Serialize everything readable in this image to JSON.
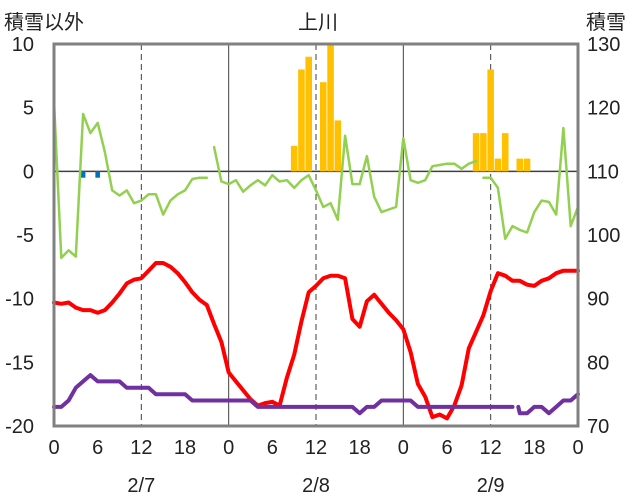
{
  "chart_data": {
    "type": "bar+line",
    "title": "上川",
    "ylabel_left": "積雪以外",
    "ylabel_right": "積雪",
    "ylim_left": [
      -20,
      10
    ],
    "ylim_right": [
      70,
      130
    ],
    "y_ticks_left": [
      "10",
      "5",
      "0",
      "-5",
      "-10",
      "-15",
      "-20"
    ],
    "y_ticks_right": [
      "130",
      "120",
      "110",
      "100",
      "90",
      "80",
      "70"
    ],
    "x_range_hours": [
      0,
      72
    ],
    "x_ticks": [
      "0",
      "6",
      "12",
      "18",
      "0",
      "6",
      "12",
      "18",
      "0",
      "6",
      "12",
      "18",
      "0"
    ],
    "date_labels": [
      "2/7",
      "2/8",
      "2/9"
    ],
    "colors": {
      "snowfall": "#FFC000",
      "precipitation": "#0070C0",
      "wind": "#92D050",
      "temperature": "#FF0000",
      "snow_depth": "#7030A0",
      "axis": "#808080",
      "zero_line": "#404040",
      "grid": "#404040"
    },
    "series": [
      {
        "key": "snowfall",
        "type": "bar",
        "axis": "left",
        "x": [
          33,
          34,
          35,
          37,
          38,
          39,
          58,
          59,
          60,
          61,
          62,
          64,
          65
        ],
        "values": [
          2,
          8,
          9,
          7,
          10,
          4,
          3,
          3,
          8,
          1,
          3,
          1,
          1
        ]
      },
      {
        "key": "precipitation",
        "type": "bar",
        "axis": "left",
        "x": [
          4,
          6
        ],
        "values": [
          -0.5,
          -0.5
        ]
      },
      {
        "key": "wind",
        "type": "line",
        "axis": "left",
        "x": [
          0,
          1,
          2,
          3,
          4,
          5,
          6,
          7,
          8,
          9,
          10,
          11,
          12,
          13,
          14,
          15,
          16,
          17,
          18,
          19,
          20,
          21,
          null,
          22,
          23,
          24,
          25,
          26,
          27,
          28,
          29,
          30,
          31,
          32,
          33,
          34,
          35,
          36,
          37,
          38,
          39,
          40,
          41,
          42,
          43,
          44,
          45,
          46,
          47,
          48,
          49,
          50,
          51,
          52,
          53,
          54,
          55,
          56,
          57,
          58,
          null,
          59,
          60,
          61,
          62,
          63,
          64,
          65,
          66,
          67,
          68,
          69,
          70,
          71,
          72
        ],
        "values": [
          5.5,
          -6.8,
          -6.2,
          -6.7,
          4.5,
          3.0,
          3.8,
          1.5,
          -1.5,
          -1.9,
          -1.5,
          -2.5,
          -2.3,
          -1.8,
          -1.8,
          -3.4,
          -2.3,
          -1.8,
          -1.5,
          -0.6,
          -0.5,
          -0.5,
          null,
          1.9,
          -0.8,
          -1.0,
          -0.7,
          -1.6,
          -1.1,
          -0.7,
          -1.1,
          -0.3,
          -0.8,
          -0.7,
          -1.3,
          -0.7,
          -0.3,
          -1.5,
          -2.8,
          -2.5,
          -3.8,
          2.8,
          -1.0,
          -1.0,
          1.2,
          -2.0,
          -3.2,
          -3.0,
          -2.8,
          2.6,
          -0.7,
          -0.9,
          -0.7,
          0.4,
          0.5,
          0.6,
          0.6,
          0.2,
          0.6,
          0.8,
          null,
          -0.5,
          -0.5,
          -1.3,
          -5.3,
          -4.3,
          -4.6,
          -4.8,
          -3.2,
          -2.3,
          -2.4,
          -3.4,
          3.4,
          -4.3,
          -2.8
        ]
      },
      {
        "key": "temperature",
        "type": "line",
        "axis": "left",
        "x": [
          0,
          1,
          2,
          3,
          4,
          5,
          6,
          7,
          8,
          9,
          10,
          11,
          12,
          13,
          14,
          15,
          16,
          17,
          18,
          19,
          20,
          21,
          22,
          23,
          24,
          25,
          26,
          27,
          28,
          29,
          30,
          31,
          32,
          33,
          34,
          35,
          36,
          37,
          38,
          39,
          40,
          41,
          42,
          43,
          44,
          45,
          46,
          47,
          48,
          49,
          50,
          51,
          52,
          53,
          54,
          55,
          56,
          57,
          58,
          59,
          60,
          61,
          62,
          63,
          64,
          65,
          66,
          67,
          68,
          69,
          70,
          71,
          72
        ],
        "values": [
          -10.3,
          -10.4,
          -10.3,
          -10.7,
          -10.9,
          -10.9,
          -11.1,
          -10.9,
          -10.3,
          -9.6,
          -8.8,
          -8.5,
          -8.4,
          -7.8,
          -7.2,
          -7.2,
          -7.5,
          -8.0,
          -8.7,
          -9.5,
          -10.1,
          -10.5,
          -12.0,
          -13.4,
          -15.8,
          -16.5,
          -17.2,
          -17.9,
          -18.4,
          -18.2,
          -18.1,
          -18.4,
          -16.2,
          -14.4,
          -11.8,
          -9.5,
          -9.0,
          -8.4,
          -8.2,
          -8.2,
          -8.4,
          -11.6,
          -12.2,
          -10.2,
          -9.7,
          -10.4,
          -11.1,
          -11.7,
          -12.4,
          -14.2,
          -16.7,
          -17.7,
          -19.3,
          -19.1,
          -19.4,
          -18.4,
          -16.8,
          -13.9,
          -12.6,
          -11.3,
          -9.4,
          -8.0,
          -8.2,
          -8.6,
          -8.6,
          -8.9,
          -9.0,
          -8.6,
          -8.4,
          -8.0,
          -7.8,
          -7.8,
          -7.8
        ]
      },
      {
        "key": "snow_depth",
        "type": "line",
        "axis": "right",
        "x": [
          0,
          1,
          2,
          3,
          4,
          5,
          6,
          7,
          8,
          9,
          10,
          11,
          12,
          13,
          14,
          15,
          16,
          17,
          18,
          19,
          20,
          21,
          22,
          23,
          24,
          25,
          26,
          27,
          28,
          29,
          30,
          31,
          32,
          33,
          34,
          35,
          36,
          37,
          38,
          39,
          40,
          41,
          42,
          43,
          44,
          45,
          46,
          47,
          48,
          49,
          50,
          51,
          52,
          53,
          54,
          55,
          56,
          57,
          58,
          59,
          60,
          61,
          62,
          63,
          null,
          63.8,
          64,
          65,
          66,
          67,
          68,
          69,
          70,
          71,
          72
        ],
        "values": [
          73,
          73,
          74,
          76,
          77,
          78,
          77,
          77,
          77,
          77,
          76,
          76,
          76,
          76,
          75,
          75,
          75,
          75,
          75,
          74,
          74,
          74,
          74,
          74,
          74,
          74,
          74,
          74,
          73,
          73,
          73,
          73,
          73,
          73,
          73,
          73,
          73,
          73,
          73,
          73,
          73,
          73,
          72,
          73,
          73,
          74,
          74,
          74,
          74,
          74,
          73,
          73,
          73,
          73,
          73,
          73,
          73,
          73,
          73,
          73,
          73,
          73,
          73,
          73,
          null,
          73,
          72,
          72,
          73,
          73,
          72,
          73,
          74,
          74,
          75
        ]
      }
    ]
  }
}
